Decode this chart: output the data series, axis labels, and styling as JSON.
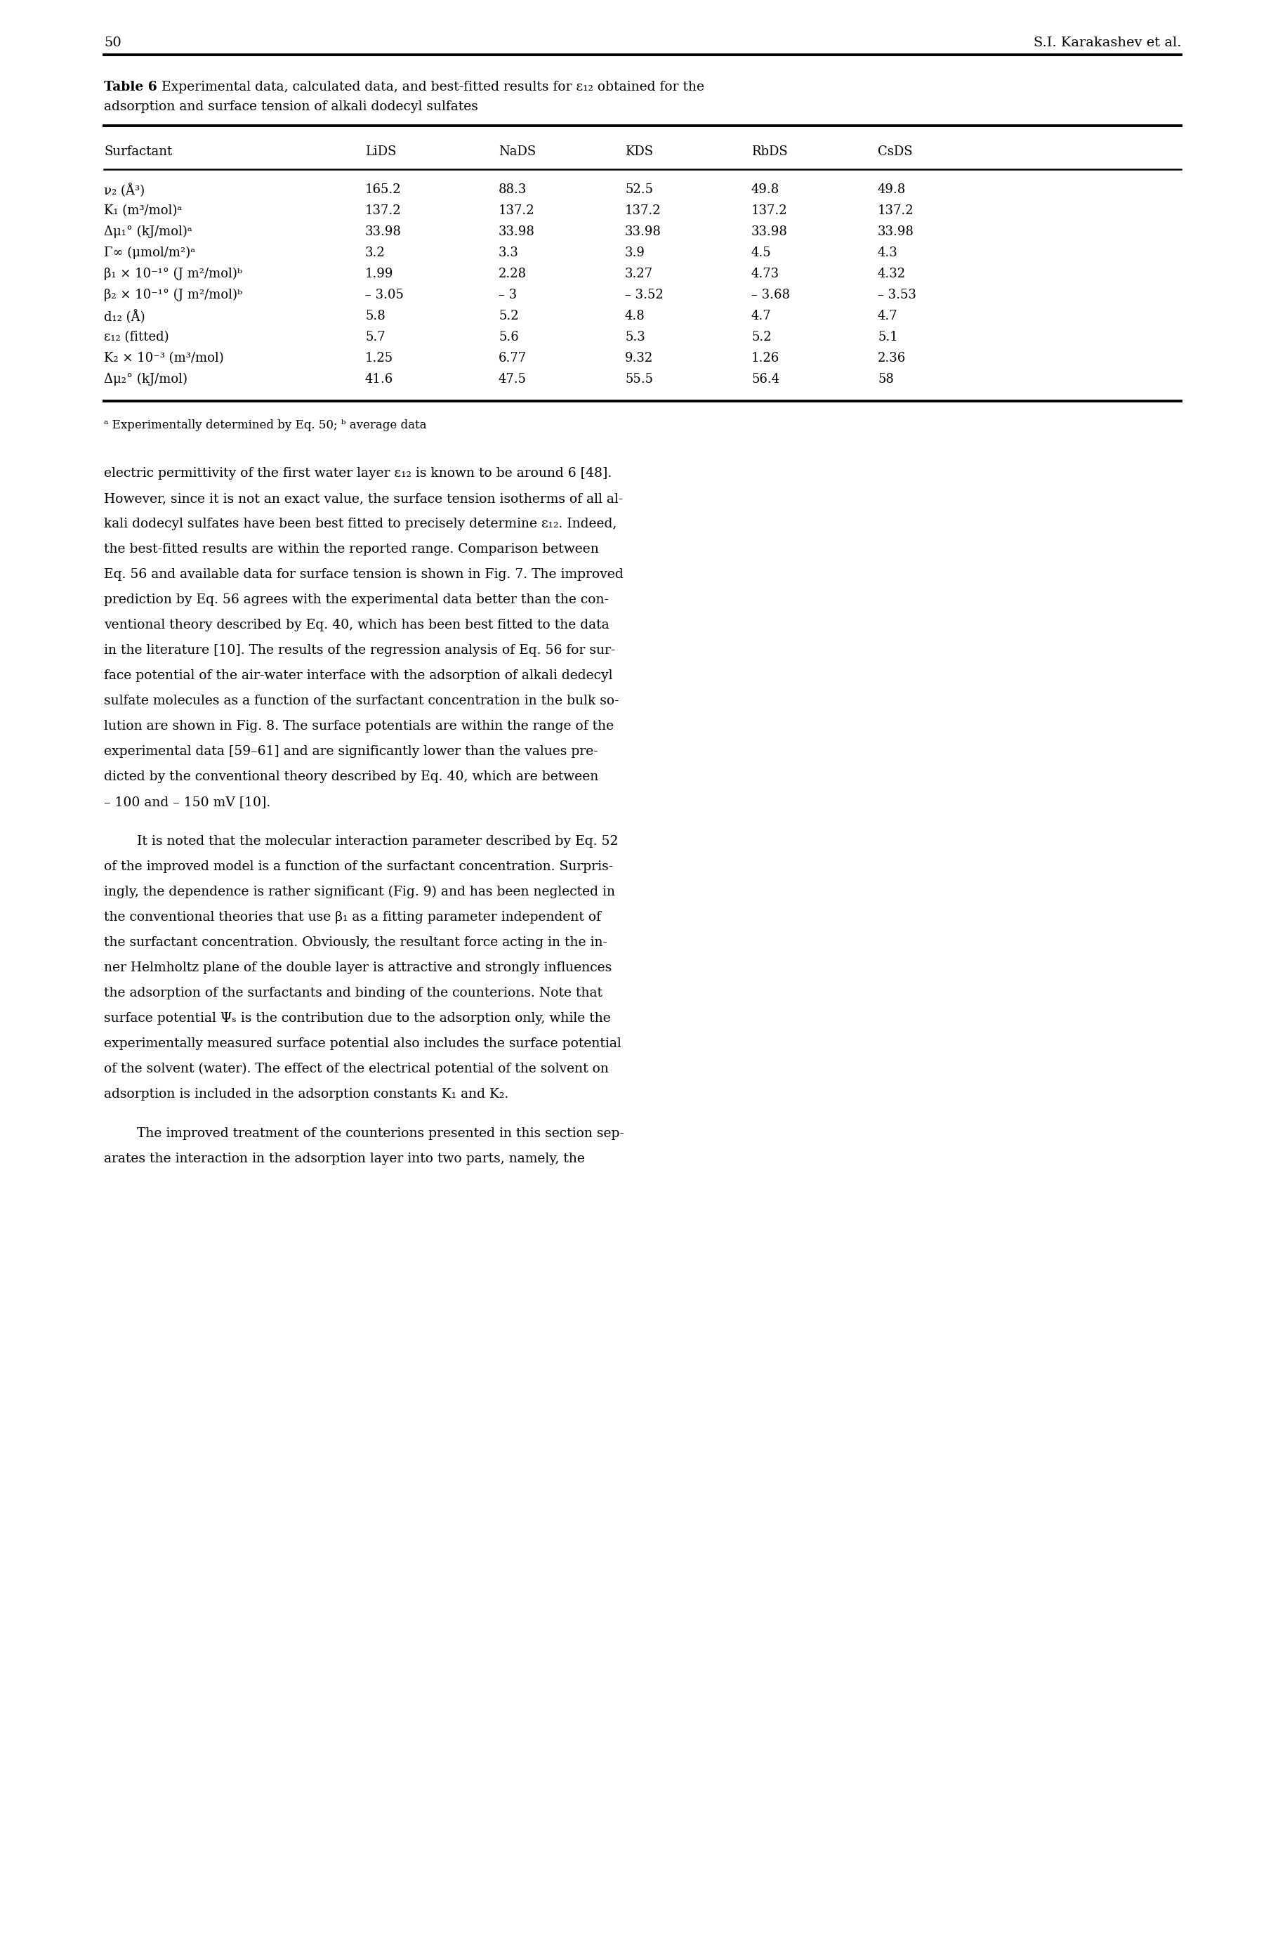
{
  "page_number": "50",
  "header_right": "S.I. Karakashev et al.",
  "table_caption_bold": "Table 6",
  "table_caption_rest": " Experimental data, calculated data, and best-fitted results for ε₁₂ obtained for the",
  "table_caption_line2": "adsorption and surface tension of alkali dodecyl sulfates",
  "col_headers": [
    "Surfactant",
    "LiDS",
    "NaDS",
    "KDS",
    "RbDS",
    "CsDS"
  ],
  "rows": [
    [
      "ν₂ (Å³)",
      "165.2",
      "88.3",
      "52.5",
      "49.8",
      "49.8"
    ],
    [
      "K₁ (m³/mol)ᵃ",
      "137.2",
      "137.2",
      "137.2",
      "137.2",
      "137.2"
    ],
    [
      "Δμ₁° (kJ/mol)ᵃ",
      "33.98",
      "33.98",
      "33.98",
      "33.98",
      "33.98"
    ],
    [
      "Γ∞ (μmol/m²)ᵃ",
      "3.2",
      "3.3",
      "3.9",
      "4.5",
      "4.3"
    ],
    [
      "β₁ × 10⁻¹° (J m²/mol)ᵇ",
      "1.99",
      "2.28",
      "3.27",
      "4.73",
      "4.32"
    ],
    [
      "β₂ × 10⁻¹° (J m²/mol)ᵇ",
      "– 3.05",
      "– 3",
      "– 3.52",
      "– 3.68",
      "– 3.53"
    ],
    [
      "d₁₂ (Å)",
      "5.8",
      "5.2",
      "4.8",
      "4.7",
      "4.7"
    ],
    [
      "ε₁₂ (fitted)",
      "5.7",
      "5.6",
      "5.3",
      "5.2",
      "5.1"
    ],
    [
      "K₂ × 10⁻³ (m³/mol)",
      "1.25",
      "6.77",
      "9.32",
      "1.26",
      "2.36"
    ],
    [
      "Δμ₂° (kJ/mol)",
      "41.6",
      "47.5",
      "55.5",
      "56.4",
      "58"
    ]
  ],
  "footnote_a": "ᵃ",
  "footnote_rest": " Experimentally determined by Eq. 50; ",
  "footnote_b": "ᵇ",
  "footnote_end": " average data",
  "body_paragraphs": [
    {
      "indent": false,
      "lines": [
        "electric permittivity of the first water layer ε₁₂ is known to be around 6 [48].",
        "However, since it is not an exact value, the surface tension isotherms of all al-",
        "kali dodecyl sulfates have been best fitted to precisely determine ε₁₂. Indeed,",
        "the best-fitted results are within the reported range. Comparison between",
        "Eq. 56 and available data for surface tension is shown in Fig. 7. The improved",
        "prediction by Eq. 56 agrees with the experimental data better than the con-",
        "ventional theory described by Eq. 40, which has been best fitted to the data",
        "in the literature [10]. The results of the regression analysis of Eq. 56 for sur-",
        "face potential of the air-water interface with the adsorption of alkali dedecyl",
        "sulfate molecules as a function of the surfactant concentration in the bulk so-",
        "lution are shown in Fig. 8. The surface potentials are within the range of the",
        "experimental data [59–61] and are significantly lower than the values pre-",
        "dicted by the conventional theory described by Eq. 40, which are between",
        "– 100 and – 150 mV [10]."
      ]
    },
    {
      "indent": true,
      "lines": [
        "It is noted that the molecular interaction parameter described by Eq. 52",
        "of the improved model is a function of the surfactant concentration. Surpris-",
        "ingly, the dependence is rather significant (Fig. 9) and has been neglected in",
        "the conventional theories that use β₁ as a fitting parameter independent of",
        "the surfactant concentration. Obviously, the resultant force acting in the in-",
        "ner Helmholtz plane of the double layer is attractive and strongly influences",
        "the adsorption of the surfactants and binding of the counterions. Note that",
        "surface potential Ψₛ is the contribution due to the adsorption only, while the",
        "experimentally measured surface potential also includes the surface potential",
        "of the solvent (water). The effect of the electrical potential of the solvent on",
        "adsorption is included in the adsorption constants K₁ and K₂."
      ]
    },
    {
      "indent": true,
      "lines": [
        "The improved treatment of the counterions presented in this section sep-",
        "arates the interaction in the adsorption layer into two parts, namely, the"
      ]
    }
  ],
  "background_color": "#ffffff",
  "text_color": "#000000"
}
